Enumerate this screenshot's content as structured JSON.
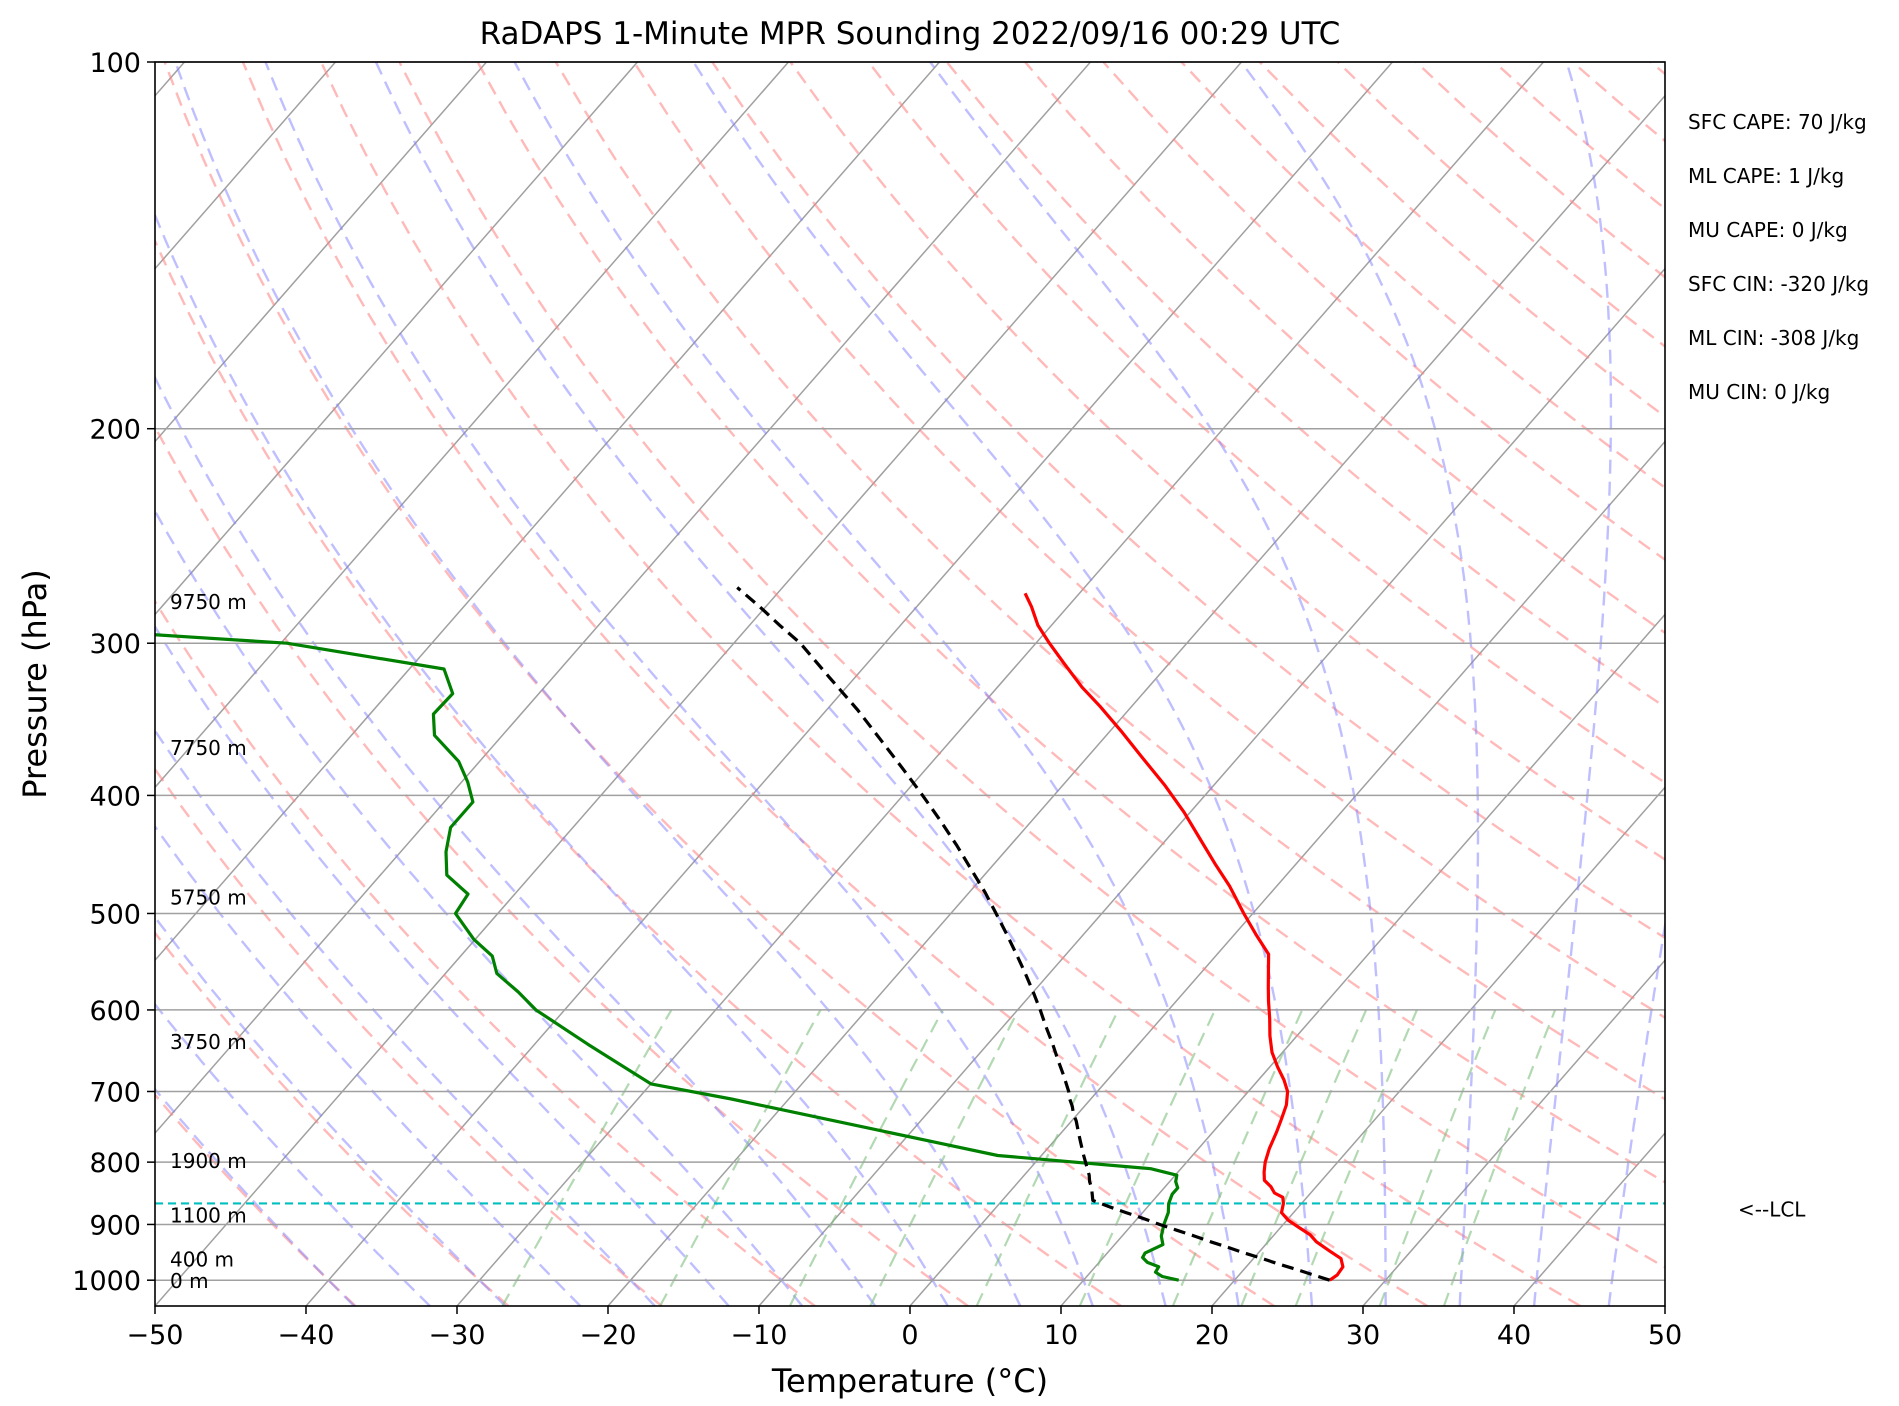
{
  "chart_data": {
    "type": "line",
    "title": "RaDAPS 1-Minute MPR Sounding 2022/09/16 00:29 UTC",
    "xlabel": "Temperature (°C)",
    "ylabel": "Pressure (hPa)",
    "xlim": [
      -50,
      50
    ],
    "ylim": [
      1050,
      100
    ],
    "y_scale": "log",
    "skew": "skew-T log-p",
    "x_ticks": [
      "−50",
      "−40",
      "−30",
      "−20",
      "−10",
      "0",
      "10",
      "20",
      "30",
      "40",
      "50"
    ],
    "y_ticks": [
      "100",
      "200",
      "300",
      "400",
      "500",
      "600",
      "700",
      "800",
      "900",
      "1000"
    ],
    "grid": true,
    "series": [
      {
        "color": "#ff0000",
        "points": [
          [
            26.3,
            1000
          ],
          [
            26.5,
            990
          ],
          [
            26.4,
            975
          ],
          [
            25.8,
            960
          ],
          [
            24.5,
            945
          ],
          [
            23.2,
            930
          ],
          [
            22.4,
            918
          ],
          [
            21.2,
            905
          ],
          [
            20.1,
            893
          ],
          [
            19.2,
            880
          ],
          [
            18.8,
            865
          ],
          [
            18.4,
            855
          ],
          [
            17.6,
            848
          ],
          [
            17.0,
            838
          ],
          [
            16.2,
            828
          ],
          [
            15.7,
            815
          ],
          [
            15.2,
            800
          ],
          [
            14.7,
            780
          ],
          [
            14.2,
            755
          ],
          [
            13.8,
            738
          ],
          [
            13.3,
            718
          ],
          [
            12.6,
            700
          ],
          [
            11.7,
            685
          ],
          [
            10.5,
            668
          ],
          [
            9.3,
            650
          ],
          [
            8.2,
            630
          ],
          [
            7.2,
            610
          ],
          [
            6.1,
            590
          ],
          [
            5.3,
            575
          ],
          [
            4.5,
            560
          ],
          [
            3.4,
            540
          ],
          [
            1.4,
            520
          ],
          [
            -0.6,
            500
          ],
          [
            -3.1,
            475
          ],
          [
            -5.4,
            455
          ],
          [
            -7.6,
            436
          ],
          [
            -10.4,
            413
          ],
          [
            -13.3,
            392
          ],
          [
            -16.4,
            372
          ],
          [
            -19.3,
            354
          ],
          [
            -22.1,
            338
          ],
          [
            -24.4,
            326
          ],
          [
            -26.9,
            312
          ],
          [
            -29.1,
            300
          ],
          [
            -30.9,
            290
          ],
          [
            -32.4,
            280
          ],
          [
            -33.6,
            273
          ]
        ]
      },
      {
        "color": "#008000",
        "points": [
          [
            16.3,
            1000
          ],
          [
            15.0,
            993
          ],
          [
            14.3,
            985
          ],
          [
            14.2,
            975
          ],
          [
            13.2,
            967
          ],
          [
            12.6,
            958
          ],
          [
            12.5,
            950
          ],
          [
            13.2,
            935
          ],
          [
            12.6,
            920
          ],
          [
            12.1,
            900
          ],
          [
            11.7,
            880
          ],
          [
            11.2,
            865
          ],
          [
            10.9,
            850
          ],
          [
            10.9,
            840
          ],
          [
            10.4,
            830
          ],
          [
            10.1,
            820
          ],
          [
            8.0,
            810
          ],
          [
            -2.9,
            790
          ],
          [
            -23.8,
            710
          ],
          [
            -30.0,
            690
          ],
          [
            -36.5,
            640
          ],
          [
            -41.9,
            600
          ],
          [
            -44.1,
            580
          ],
          [
            -46.6,
            560
          ],
          [
            -47.9,
            542
          ],
          [
            -50.1,
            525
          ],
          [
            -52.8,
            500
          ],
          [
            -53.1,
            482
          ],
          [
            -55.6,
            465
          ],
          [
            -57.0,
            445
          ],
          [
            -58.1,
            425
          ],
          [
            -58.1,
            405
          ],
          [
            -59.6,
            390
          ],
          [
            -61.4,
            375
          ],
          [
            -64.5,
            357
          ],
          [
            -65.8,
            343
          ],
          [
            -65.7,
            330
          ],
          [
            -67.7,
            315
          ],
          [
            -79.6,
            300
          ],
          [
            -93.3,
            293
          ]
        ]
      },
      {
        "color": "#000000",
        "dashed": true,
        "points": [
          [
            26.3,
            1000
          ],
          [
            24.9,
            990
          ],
          [
            23.5,
            980
          ],
          [
            22.0,
            970
          ],
          [
            20.6,
            960
          ],
          [
            19.1,
            950
          ],
          [
            17.7,
            940
          ],
          [
            16.2,
            930
          ],
          [
            14.8,
            920
          ],
          [
            13.3,
            910
          ],
          [
            11.8,
            900
          ],
          [
            10.4,
            890
          ],
          [
            8.9,
            880
          ],
          [
            7.4,
            870
          ],
          [
            6.0,
            860
          ],
          [
            5.6,
            850
          ],
          [
            5.2,
            840
          ],
          [
            4.7,
            830
          ],
          [
            4.3,
            820
          ],
          [
            3.8,
            810
          ],
          [
            3.3,
            800
          ],
          [
            2.8,
            790
          ],
          [
            2.3,
            780
          ],
          [
            1.8,
            770
          ],
          [
            1.3,
            760
          ],
          [
            0.8,
            750
          ],
          [
            0.3,
            740
          ],
          [
            -0.3,
            730
          ],
          [
            -0.8,
            720
          ],
          [
            -1.4,
            710
          ],
          [
            -1.9,
            700
          ],
          [
            -3.1,
            680
          ],
          [
            -4.4,
            660
          ],
          [
            -5.7,
            640
          ],
          [
            -7.1,
            620
          ],
          [
            -8.5,
            600
          ],
          [
            -10.0,
            580
          ],
          [
            -11.6,
            560
          ],
          [
            -13.3,
            540
          ],
          [
            -15.1,
            520
          ],
          [
            -17.0,
            500
          ],
          [
            -19.0,
            480
          ],
          [
            -21.2,
            460
          ],
          [
            -23.5,
            440
          ],
          [
            -26.0,
            420
          ],
          [
            -28.7,
            400
          ],
          [
            -31.6,
            380
          ],
          [
            -34.7,
            360
          ],
          [
            -38.0,
            340
          ],
          [
            -41.7,
            320
          ],
          [
            -45.6,
            300
          ],
          [
            -48.0,
            290
          ],
          [
            -50.4,
            280
          ],
          [
            -53.0,
            270
          ]
        ]
      }
    ],
    "lcl": {
      "label": "<--LCL",
      "pressure": 865
    },
    "height_labels": [
      {
        "label": "9750 m",
        "pressure": 277
      },
      {
        "label": "7750 m",
        "pressure": 365
      },
      {
        "label": "5750 m",
        "pressure": 484
      },
      {
        "label": "3750 m",
        "pressure": 636
      },
      {
        "label": "1900 m",
        "pressure": 797
      },
      {
        "label": "1100 m",
        "pressure": 883
      },
      {
        "label": "400 m",
        "pressure": 960
      },
      {
        "label": "0 m",
        "pressure": 1000
      }
    ],
    "annotations": [
      "SFC CAPE: 70 J/kg",
      "ML CAPE: 1 J/kg",
      "MU CAPE: 0 J/kg",
      "SFC CIN: -320 J/kg",
      "ML CIN: -308 J/kg",
      "MU CIN: 0 J/kg"
    ],
    "background_lines": {
      "isotherms_color": "#a0a0a0",
      "dry_adiabats_color": "#ff8080",
      "moist_adiabats_color": "#8080ff",
      "mixing_ratio_color": "#80c080"
    }
  }
}
